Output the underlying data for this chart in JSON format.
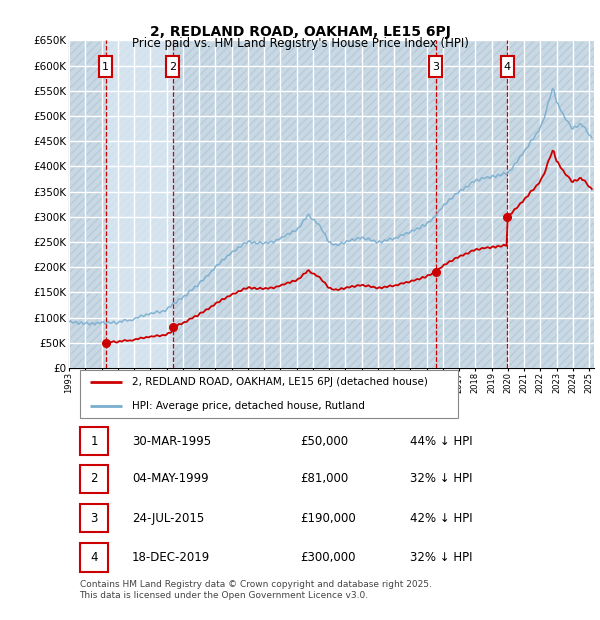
{
  "title": "2, REDLAND ROAD, OAKHAM, LE15 6PJ",
  "subtitle": "Price paid vs. HM Land Registry's House Price Index (HPI)",
  "ylim": [
    0,
    650000
  ],
  "yticks": [
    0,
    50000,
    100000,
    150000,
    200000,
    250000,
    300000,
    350000,
    400000,
    450000,
    500000,
    550000,
    600000,
    650000
  ],
  "sale_dates": [
    "30-MAR-1995",
    "04-MAY-1999",
    "24-JUL-2015",
    "18-DEC-2019"
  ],
  "sale_prices": [
    50000,
    81000,
    190000,
    300000
  ],
  "sale_prices_fmt": [
    "£50,000",
    "£81,000",
    "£190,000",
    "£300,000"
  ],
  "sale_hpi_diff": [
    "44% ↓ HPI",
    "32% ↓ HPI",
    "42% ↓ HPI",
    "32% ↓ HPI"
  ],
  "sale_years": [
    1995.25,
    1999.37,
    2015.56,
    2019.97
  ],
  "legend_price": "2, REDLAND ROAD, OAKHAM, LE15 6PJ (detached house)",
  "legend_hpi": "HPI: Average price, detached house, Rutland",
  "footer": "Contains HM Land Registry data © Crown copyright and database right 2025.\nThis data is licensed under the Open Government Licence v3.0.",
  "price_color": "#cc0000",
  "hpi_color": "#7aadcf",
  "bg_color": "#dce8f0",
  "hatch_bg": "#d0dce8",
  "grid_color": "#ffffff",
  "vline_color": "#cc0000",
  "box_color": "#cc0000",
  "xlim": [
    1993.0,
    2025.3
  ]
}
